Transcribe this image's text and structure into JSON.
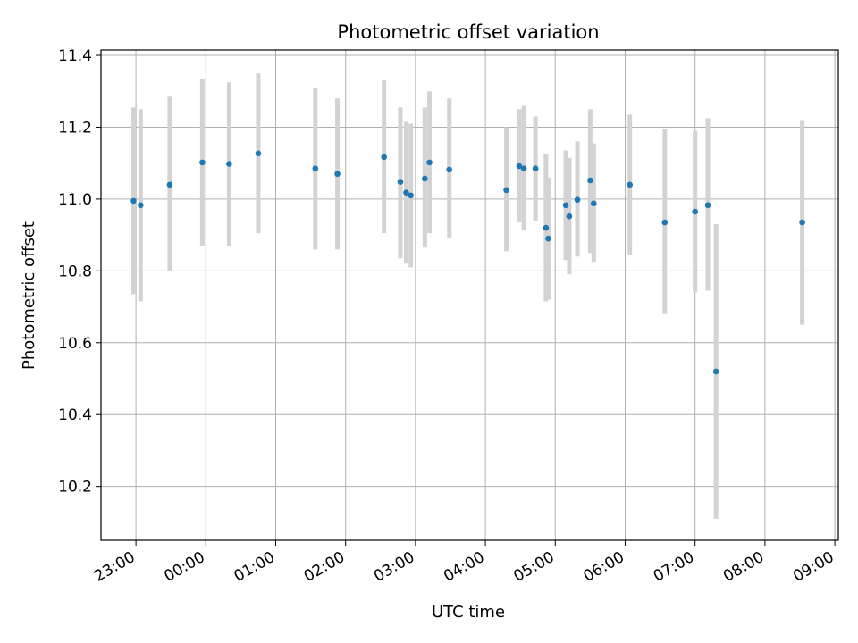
{
  "chart_data": {
    "type": "scatter",
    "title": "Photometric offset variation",
    "xlabel": "UTC time",
    "ylabel": "Photometric offset",
    "grid": true,
    "colors": {
      "marker": "#1f77b4",
      "errorbar": "#d3d3d3",
      "grid": "#b0b0b0"
    },
    "xlim": [
      "22:30",
      "09:03"
    ],
    "ylim": [
      10.05,
      11.415
    ],
    "x_ticks": [
      "23:00",
      "00:00",
      "01:00",
      "02:00",
      "03:00",
      "04:00",
      "05:00",
      "06:00",
      "07:00",
      "08:00",
      "09:00"
    ],
    "y_ticks": [
      "10.2",
      "10.4",
      "10.6",
      "10.8",
      "11.0",
      "11.2",
      "11.4"
    ],
    "points": [
      {
        "time": "22:58",
        "y": 10.995,
        "ylow": 10.735,
        "yhigh": 11.255
      },
      {
        "time": "23:04",
        "y": 10.983,
        "ylow": 10.715,
        "yhigh": 11.25
      },
      {
        "time": "23:29",
        "y": 11.04,
        "ylow": 10.8,
        "yhigh": 11.285
      },
      {
        "time": "23:57",
        "y": 11.102,
        "ylow": 10.87,
        "yhigh": 11.335
      },
      {
        "time": "00:20",
        "y": 11.098,
        "ylow": 10.87,
        "yhigh": 11.325
      },
      {
        "time": "00:45",
        "y": 11.127,
        "ylow": 10.905,
        "yhigh": 11.35
      },
      {
        "time": "01:34",
        "y": 11.085,
        "ylow": 10.86,
        "yhigh": 11.31
      },
      {
        "time": "01:53",
        "y": 11.07,
        "ylow": 10.86,
        "yhigh": 11.28
      },
      {
        "time": "02:33",
        "y": 11.117,
        "ylow": 10.905,
        "yhigh": 11.33
      },
      {
        "time": "02:47",
        "y": 11.048,
        "ylow": 10.835,
        "yhigh": 11.255
      },
      {
        "time": "02:52",
        "y": 11.018,
        "ylow": 10.82,
        "yhigh": 11.215
      },
      {
        "time": "02:56",
        "y": 11.01,
        "ylow": 10.81,
        "yhigh": 11.21
      },
      {
        "time": "03:08",
        "y": 11.057,
        "ylow": 10.865,
        "yhigh": 11.255
      },
      {
        "time": "03:12",
        "y": 11.102,
        "ylow": 10.905,
        "yhigh": 11.3
      },
      {
        "time": "03:29",
        "y": 11.082,
        "ylow": 10.89,
        "yhigh": 11.28
      },
      {
        "time": "04:18",
        "y": 11.025,
        "ylow": 10.855,
        "yhigh": 11.2
      },
      {
        "time": "04:29",
        "y": 11.092,
        "ylow": 10.935,
        "yhigh": 11.25
      },
      {
        "time": "04:33",
        "y": 11.085,
        "ylow": 10.915,
        "yhigh": 11.26
      },
      {
        "time": "04:43",
        "y": 11.085,
        "ylow": 10.94,
        "yhigh": 11.23
      },
      {
        "time": "04:52",
        "y": 10.92,
        "ylow": 10.715,
        "yhigh": 11.125
      },
      {
        "time": "04:54",
        "y": 10.89,
        "ylow": 10.72,
        "yhigh": 11.06
      },
      {
        "time": "05:09",
        "y": 10.983,
        "ylow": 10.83,
        "yhigh": 11.135
      },
      {
        "time": "05:12",
        "y": 10.952,
        "ylow": 10.79,
        "yhigh": 11.115
      },
      {
        "time": "05:19",
        "y": 10.998,
        "ylow": 10.84,
        "yhigh": 11.16
      },
      {
        "time": "05:30",
        "y": 11.052,
        "ylow": 10.85,
        "yhigh": 11.25
      },
      {
        "time": "05:33",
        "y": 10.988,
        "ylow": 10.825,
        "yhigh": 11.155
      },
      {
        "time": "06:04",
        "y": 11.04,
        "ylow": 10.845,
        "yhigh": 11.235
      },
      {
        "time": "06:34",
        "y": 10.935,
        "ylow": 10.68,
        "yhigh": 11.195
      },
      {
        "time": "07:00",
        "y": 10.965,
        "ylow": 10.74,
        "yhigh": 11.19
      },
      {
        "time": "07:11",
        "y": 10.983,
        "ylow": 10.745,
        "yhigh": 11.225
      },
      {
        "time": "07:18",
        "y": 10.52,
        "ylow": 10.11,
        "yhigh": 10.93
      },
      {
        "time": "08:32",
        "y": 10.935,
        "ylow": 10.65,
        "yhigh": 11.22
      }
    ]
  }
}
